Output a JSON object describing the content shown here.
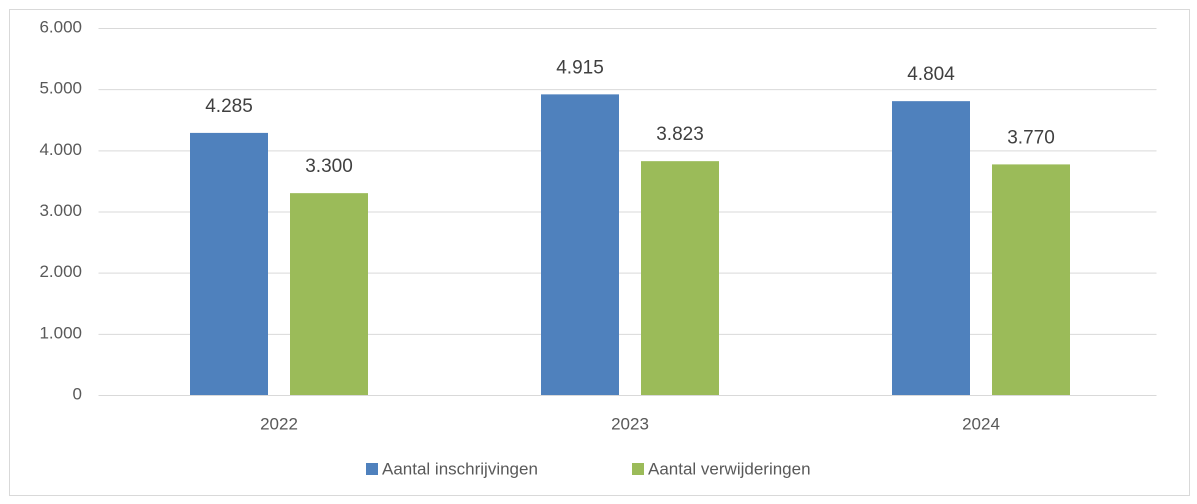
{
  "chart_data": {
    "type": "bar",
    "categories": [
      "2022",
      "2023",
      "2024"
    ],
    "series": [
      {
        "name": "Aantal inschrijvingen",
        "color": "#4f81bd",
        "values": [
          4285,
          4915,
          4804
        ],
        "value_labels": [
          "4.285",
          "4.915",
          "4.804"
        ]
      },
      {
        "name": "Aantal verwijderingen",
        "color": "#9bbb59",
        "values": [
          3300,
          3823,
          3770
        ],
        "value_labels": [
          "3.300",
          "3.823",
          "3.770"
        ]
      }
    ],
    "ylim": [
      0,
      6000
    ],
    "yticks": [
      0,
      {
        "value": 1000,
        "label": "1.000"
      },
      {
        "value": 2000,
        "label": "2.000"
      },
      {
        "value": 3000,
        "label": "3.000"
      },
      {
        "value": 4000,
        "label": "4.000"
      },
      {
        "value": 5000,
        "label": "5.000"
      },
      {
        "value": 6000,
        "label": "6.000"
      }
    ],
    "grid": true,
    "legend": "bottom"
  }
}
